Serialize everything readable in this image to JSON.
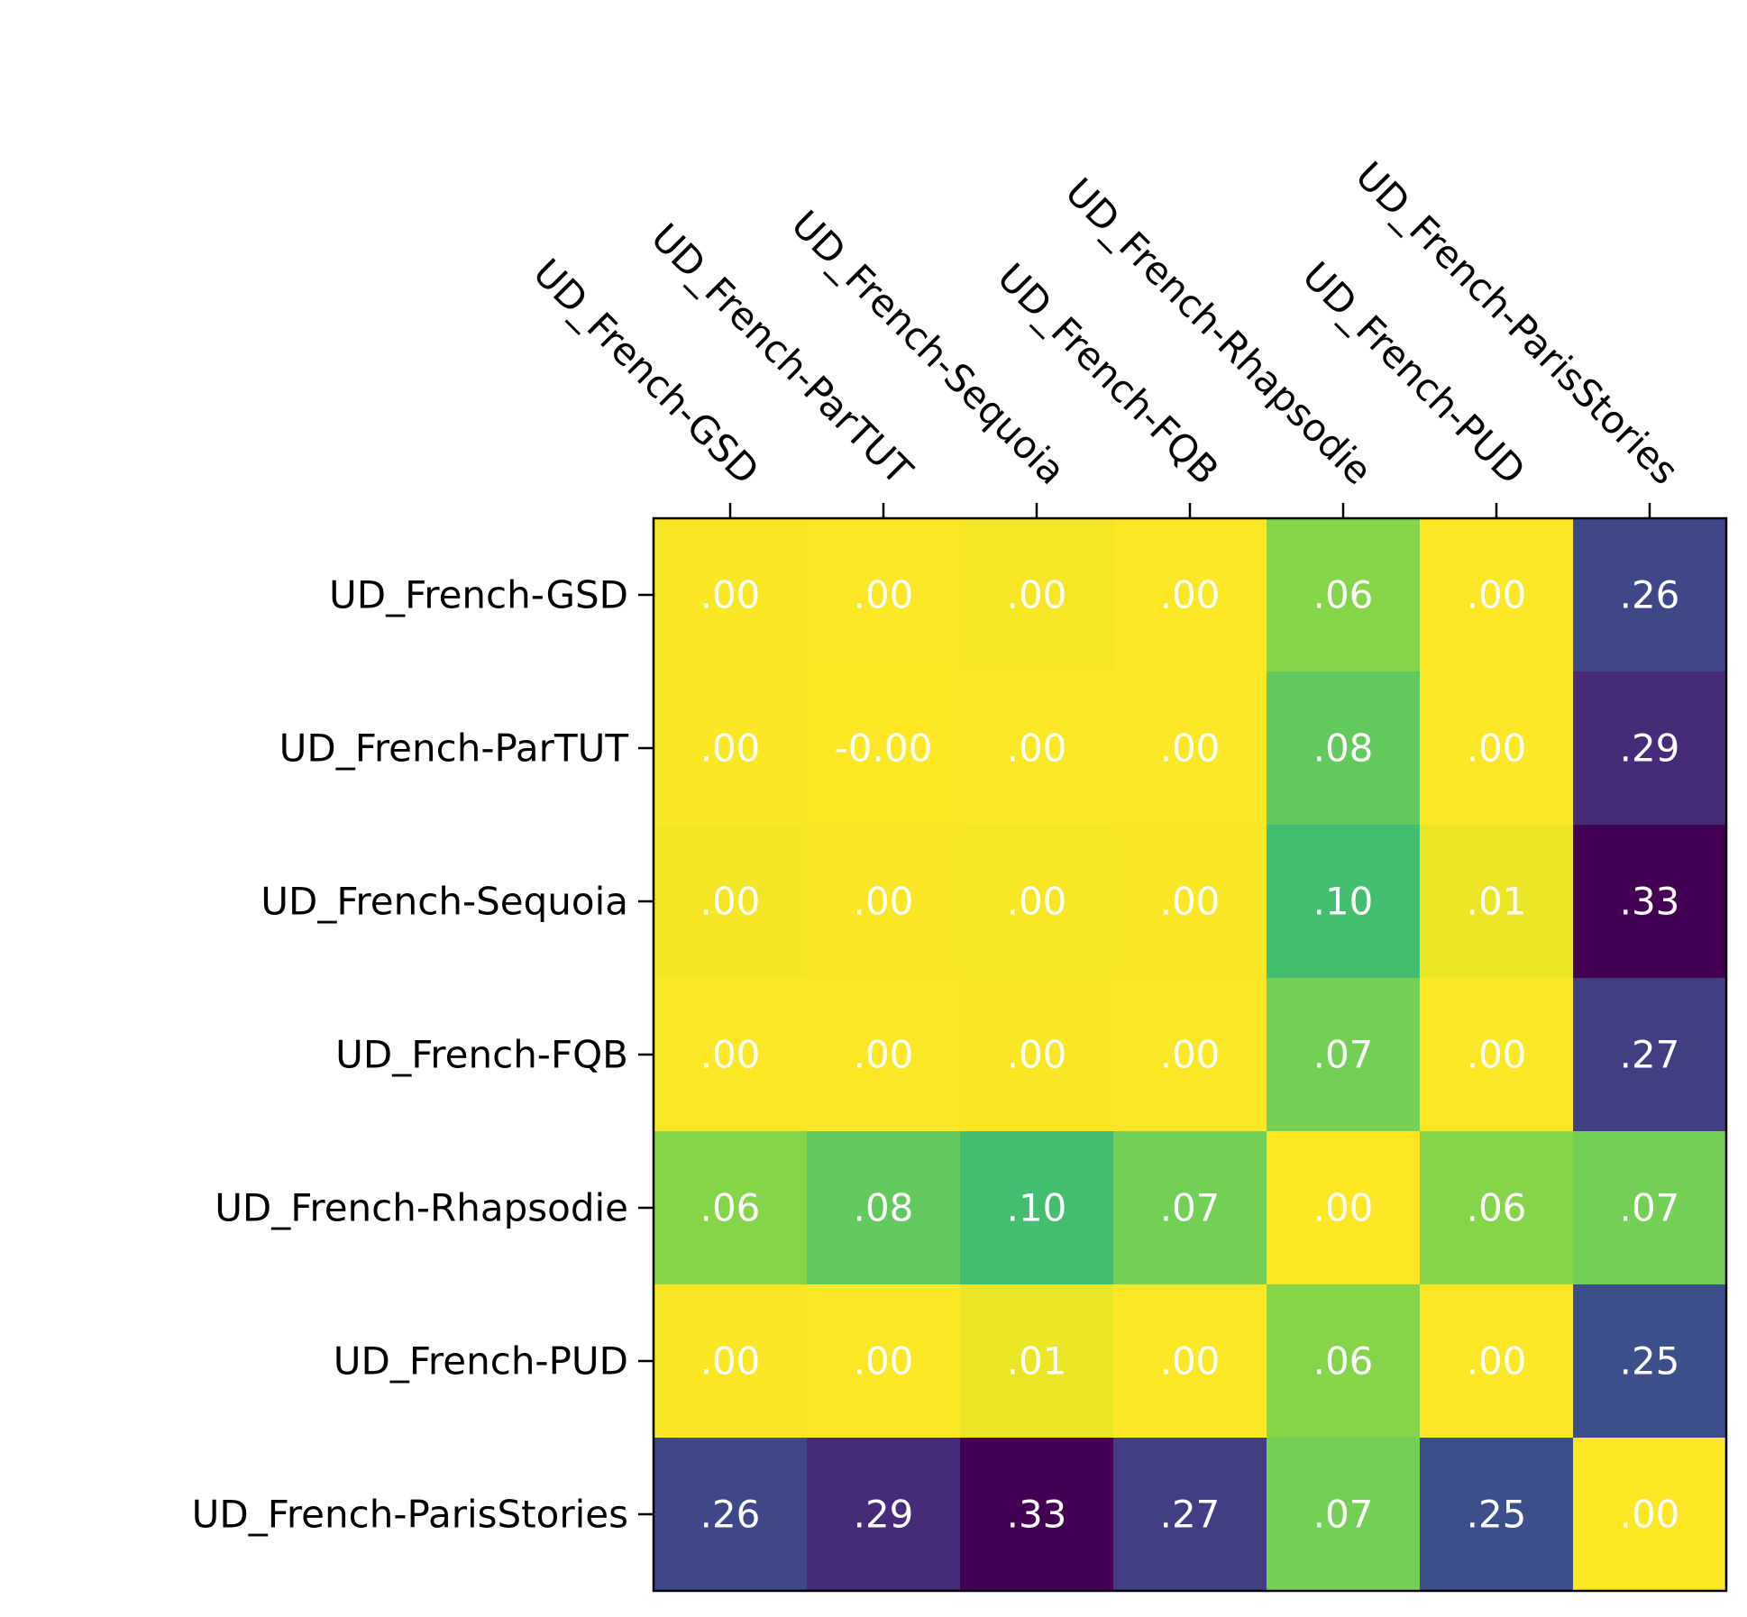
{
  "chart_data": {
    "type": "heatmap",
    "title": "",
    "xlabel": "",
    "ylabel": "",
    "colormap": "viridis_r",
    "value_range": [
      0.0,
      0.33
    ],
    "x_categories": [
      "UD_French-GSD",
      "UD_French-ParTUT",
      "UD_French-Sequoia",
      "UD_French-FQB",
      "UD_French-Rhapsodie",
      "UD_French-PUD",
      "UD_French-ParisStories"
    ],
    "y_categories": [
      "UD_French-GSD",
      "UD_French-ParTUT",
      "UD_French-Sequoia",
      "UD_French-FQB",
      "UD_French-Rhapsodie",
      "UD_French-PUD",
      "UD_French-ParisStories"
    ],
    "values": [
      [
        0.002,
        0.001,
        0.003,
        0.001,
        0.06,
        0.001,
        0.26
      ],
      [
        0.002,
        0.0,
        0.001,
        0.001,
        0.08,
        0.001,
        0.29
      ],
      [
        0.004,
        0.002,
        0.003,
        0.002,
        0.1,
        0.01,
        0.33
      ],
      [
        0.001,
        0.001,
        0.002,
        0.001,
        0.07,
        0.001,
        0.27
      ],
      [
        0.06,
        0.08,
        0.1,
        0.07,
        0.0,
        0.06,
        0.07
      ],
      [
        0.002,
        0.001,
        0.01,
        0.001,
        0.06,
        0.001,
        0.25
      ],
      [
        0.26,
        0.29,
        0.33,
        0.27,
        0.07,
        0.25,
        0.0
      ]
    ],
    "cell_labels": [
      [
        ".00",
        ".00",
        ".00",
        ".00",
        ".06",
        ".00",
        ".26"
      ],
      [
        ".00",
        "-0.00",
        ".00",
        ".00",
        ".08",
        ".00",
        ".29"
      ],
      [
        ".00",
        ".00",
        ".00",
        ".00",
        ".10",
        ".01",
        ".33"
      ],
      [
        ".00",
        ".00",
        ".00",
        ".00",
        ".07",
        ".00",
        ".27"
      ],
      [
        ".06",
        ".08",
        ".10",
        ".07",
        ".00",
        ".06",
        ".07"
      ],
      [
        ".00",
        ".00",
        ".01",
        ".00",
        ".06",
        ".00",
        ".25"
      ],
      [
        ".26",
        ".29",
        ".33",
        ".27",
        ".07",
        ".25",
        ".00"
      ]
    ],
    "annotation_color": "#ffffff",
    "x_tick_position": "top",
    "x_tick_rotation": "-45",
    "grid": false,
    "legend": "none"
  }
}
